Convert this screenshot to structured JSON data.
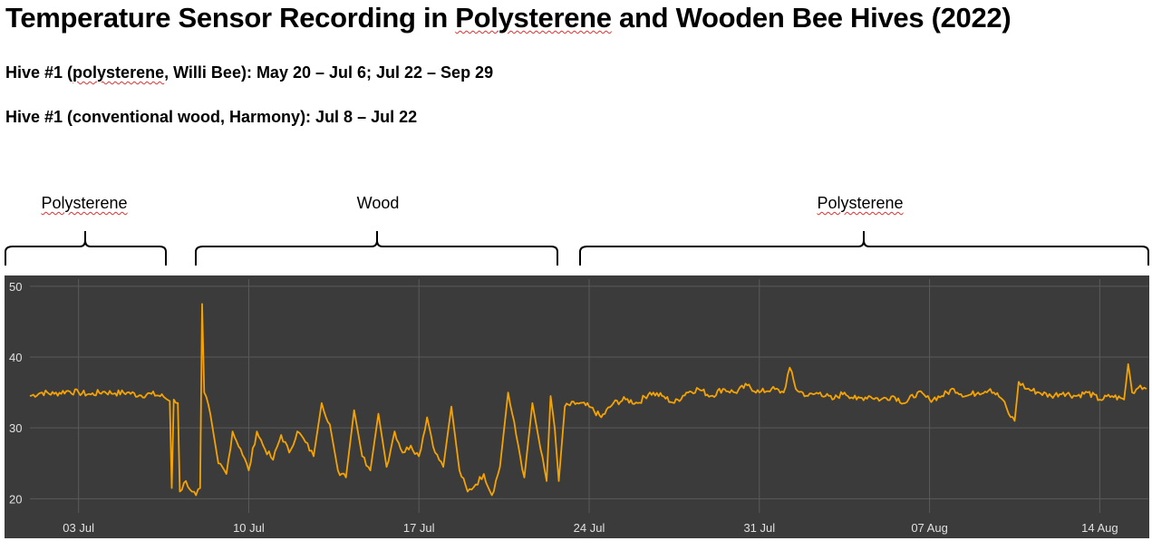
{
  "title": {
    "pre": "Temperature Sensor Recording in ",
    "spell": "Polysterene",
    "post": " and Wooden Bee Hives (2022)"
  },
  "subtitle1": {
    "pre": "Hive #1 (",
    "spell": "polysterene",
    "post": ", Willi Bee): May 20 – Jul 6; Jul 22 – Sep 29"
  },
  "subtitle2": "Hive #1 (conventional wood, Harmony): Jul 8 – Jul 22",
  "segments": [
    {
      "label": "Polysterene",
      "spell": true
    },
    {
      "label": "Wood",
      "spell": false
    },
    {
      "label": "Polysterene",
      "spell": true
    }
  ],
  "colors": {
    "line": "#f5a300",
    "background": "#3b3b3b",
    "grid": "#5a5a5a",
    "text": "#e0e0e0"
  },
  "chart_data": {
    "type": "line",
    "title": "",
    "xlabel": "",
    "ylabel": "",
    "ylim": [
      18,
      51
    ],
    "yticks": [
      20,
      30,
      40,
      50
    ],
    "xticks": [
      "03 Jul",
      "10 Jul",
      "17 Jul",
      "24 Jul",
      "31 Jul",
      "07 Aug",
      "14 Aug"
    ],
    "xlim": [
      "2022-07-01",
      "2022-08-15"
    ],
    "grid": true,
    "series": [
      {
        "name": "",
        "points": [
          [
            "2022-07-01 00:00",
            34.5
          ],
          [
            "2022-07-01 12:00",
            35.0
          ],
          [
            "2022-07-02 00:00",
            34.8
          ],
          [
            "2022-07-02 12:00",
            35.2
          ],
          [
            "2022-07-03 00:00",
            35.0
          ],
          [
            "2022-07-03 12:00",
            34.7
          ],
          [
            "2022-07-04 00:00",
            35.1
          ],
          [
            "2022-07-04 12:00",
            34.9
          ],
          [
            "2022-07-05 00:00",
            35.0
          ],
          [
            "2022-07-05 12:00",
            34.6
          ],
          [
            "2022-07-06 00:00",
            34.8
          ],
          [
            "2022-07-06 12:00",
            34.4
          ],
          [
            "2022-07-06 18:00",
            33.8
          ],
          [
            "2022-07-06 20:00",
            21.5
          ],
          [
            "2022-07-06 22:00",
            34.0
          ],
          [
            "2022-07-07 02:00",
            33.5
          ],
          [
            "2022-07-07 04:00",
            21.0
          ],
          [
            "2022-07-07 10:00",
            22.5
          ],
          [
            "2022-07-07 16:00",
            21.0
          ],
          [
            "2022-07-07 20:00",
            20.5
          ],
          [
            "2022-07-08 00:00",
            21.5
          ],
          [
            "2022-07-08 02:00",
            47.5
          ],
          [
            "2022-07-08 04:00",
            35.0
          ],
          [
            "2022-07-08 10:00",
            32.0
          ],
          [
            "2022-07-08 18:00",
            25.0
          ],
          [
            "2022-07-09 02:00",
            23.5
          ],
          [
            "2022-07-09 08:00",
            29.5
          ],
          [
            "2022-07-09 16:00",
            27.0
          ],
          [
            "2022-07-10 00:00",
            24.0
          ],
          [
            "2022-07-10 08:00",
            29.5
          ],
          [
            "2022-07-10 16:00",
            27.0
          ],
          [
            "2022-07-11 00:00",
            25.5
          ],
          [
            "2022-07-11 08:00",
            29.0
          ],
          [
            "2022-07-11 16:00",
            26.5
          ],
          [
            "2022-07-12 00:00",
            29.5
          ],
          [
            "2022-07-12 08:00",
            28.0
          ],
          [
            "2022-07-12 16:00",
            26.0
          ],
          [
            "2022-07-13 00:00",
            33.5
          ],
          [
            "2022-07-13 08:00",
            30.5
          ],
          [
            "2022-07-13 16:00",
            24.0
          ],
          [
            "2022-07-14 00:00",
            23.0
          ],
          [
            "2022-07-14 08:00",
            32.5
          ],
          [
            "2022-07-14 16:00",
            26.0
          ],
          [
            "2022-07-15 00:00",
            24.0
          ],
          [
            "2022-07-15 08:00",
            32.0
          ],
          [
            "2022-07-15 16:00",
            24.5
          ],
          [
            "2022-07-16 00:00",
            29.5
          ],
          [
            "2022-07-16 08:00",
            26.5
          ],
          [
            "2022-07-16 16:00",
            27.5
          ],
          [
            "2022-07-17 00:00",
            26.0
          ],
          [
            "2022-07-17 08:00",
            31.5
          ],
          [
            "2022-07-17 16:00",
            26.5
          ],
          [
            "2022-07-18 00:00",
            24.5
          ],
          [
            "2022-07-18 08:00",
            33.0
          ],
          [
            "2022-07-18 16:00",
            24.0
          ],
          [
            "2022-07-19 00:00",
            21.0
          ],
          [
            "2022-07-19 08:00",
            22.0
          ],
          [
            "2022-07-19 16:00",
            23.5
          ],
          [
            "2022-07-20 00:00",
            20.5
          ],
          [
            "2022-07-20 08:00",
            24.5
          ],
          [
            "2022-07-20 16:00",
            35.0
          ],
          [
            "2022-07-21 00:00",
            29.0
          ],
          [
            "2022-07-21 08:00",
            23.0
          ],
          [
            "2022-07-21 16:00",
            33.5
          ],
          [
            "2022-07-22 00:00",
            27.0
          ],
          [
            "2022-07-22 06:00",
            22.5
          ],
          [
            "2022-07-22 10:00",
            34.5
          ],
          [
            "2022-07-22 14:00",
            30.0
          ],
          [
            "2022-07-22 18:00",
            22.5
          ],
          [
            "2022-07-23 00:00",
            33.0
          ],
          [
            "2022-07-23 12:00",
            33.5
          ],
          [
            "2022-07-24 00:00",
            33.0
          ],
          [
            "2022-07-24 12:00",
            31.5
          ],
          [
            "2022-07-25 00:00",
            33.5
          ],
          [
            "2022-07-25 12:00",
            34.0
          ],
          [
            "2022-07-26 00:00",
            33.5
          ],
          [
            "2022-07-26 12:00",
            35.0
          ],
          [
            "2022-07-27 00:00",
            34.5
          ],
          [
            "2022-07-27 12:00",
            33.5
          ],
          [
            "2022-07-28 00:00",
            35.0
          ],
          [
            "2022-07-28 12:00",
            35.5
          ],
          [
            "2022-07-29 00:00",
            34.5
          ],
          [
            "2022-07-29 12:00",
            35.5
          ],
          [
            "2022-07-30 00:00",
            35.0
          ],
          [
            "2022-07-30 12:00",
            36.0
          ],
          [
            "2022-07-31 00:00",
            35.0
          ],
          [
            "2022-07-31 12:00",
            35.5
          ],
          [
            "2022-08-01 00:00",
            35.0
          ],
          [
            "2022-08-01 06:00",
            38.5
          ],
          [
            "2022-08-01 12:00",
            35.5
          ],
          [
            "2022-08-02 00:00",
            34.5
          ],
          [
            "2022-08-02 12:00",
            35.0
          ],
          [
            "2022-08-03 00:00",
            34.0
          ],
          [
            "2022-08-03 12:00",
            35.0
          ],
          [
            "2022-08-04 00:00",
            34.0
          ],
          [
            "2022-08-04 12:00",
            34.5
          ],
          [
            "2022-08-05 00:00",
            34.0
          ],
          [
            "2022-08-05 12:00",
            34.5
          ],
          [
            "2022-08-06 00:00",
            33.5
          ],
          [
            "2022-08-06 12:00",
            35.0
          ],
          [
            "2022-08-07 00:00",
            34.0
          ],
          [
            "2022-08-07 12:00",
            34.5
          ],
          [
            "2022-08-08 00:00",
            35.5
          ],
          [
            "2022-08-08 12:00",
            34.5
          ],
          [
            "2022-08-09 00:00",
            35.0
          ],
          [
            "2022-08-09 12:00",
            35.5
          ],
          [
            "2022-08-10 00:00",
            34.0
          ],
          [
            "2022-08-10 06:00",
            32.0
          ],
          [
            "2022-08-10 12:00",
            31.0
          ],
          [
            "2022-08-10 16:00",
            36.5
          ],
          [
            "2022-08-11 00:00",
            35.5
          ],
          [
            "2022-08-11 12:00",
            35.0
          ],
          [
            "2022-08-12 00:00",
            34.5
          ],
          [
            "2022-08-12 12:00",
            35.0
          ],
          [
            "2022-08-13 00:00",
            34.5
          ],
          [
            "2022-08-13 12:00",
            35.0
          ],
          [
            "2022-08-14 00:00",
            34.0
          ],
          [
            "2022-08-14 12:00",
            34.5
          ],
          [
            "2022-08-15 00:00",
            34.0
          ],
          [
            "2022-08-15 04:00",
            39.0
          ],
          [
            "2022-08-15 08:00",
            35.0
          ],
          [
            "2022-08-15 16:00",
            36.0
          ],
          [
            "2022-08-15 22:00",
            35.5
          ]
        ]
      }
    ]
  }
}
